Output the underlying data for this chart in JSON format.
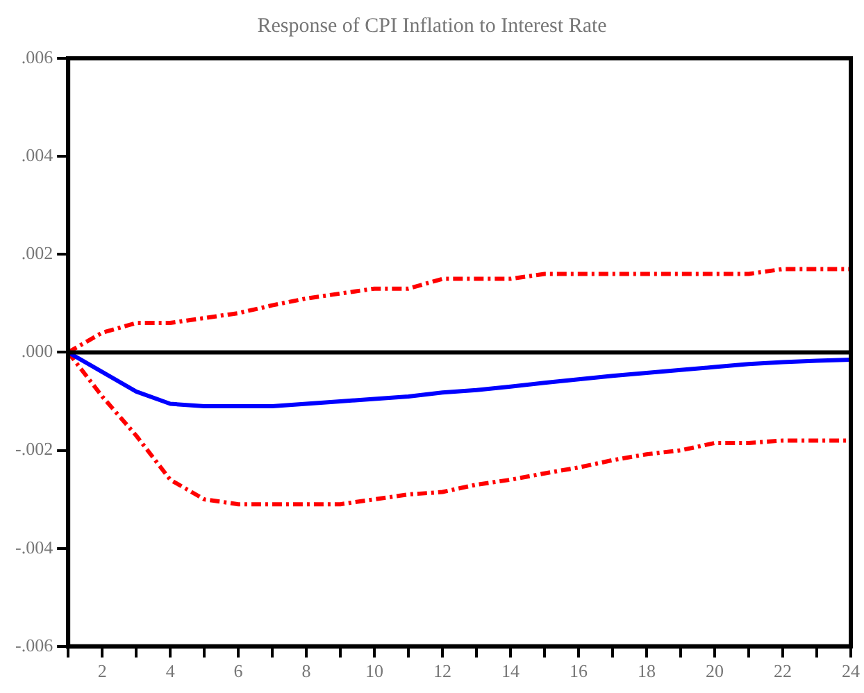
{
  "chart_data": {
    "type": "line",
    "title": "Response of CPI Inflation to Interest Rate",
    "x": [
      1,
      2,
      3,
      4,
      5,
      6,
      7,
      8,
      9,
      10,
      11,
      12,
      13,
      14,
      15,
      16,
      17,
      18,
      19,
      20,
      21,
      22,
      23,
      24
    ],
    "series": [
      {
        "color": "#0000ff",
        "line_style": "solid",
        "values": [
          0,
          -0.0004,
          -0.0008,
          -0.00105,
          -0.0011,
          -0.0011,
          -0.0011,
          -0.00105,
          -0.001,
          -0.00095,
          -0.0009,
          -0.00082,
          -0.00077,
          -0.0007,
          -0.00062,
          -0.00055,
          -0.00048,
          -0.00042,
          -0.00036,
          -0.0003,
          -0.00024,
          -0.0002,
          -0.00017,
          -0.00015
        ]
      },
      {
        "color": "#ff0000",
        "line_style": "dashed",
        "values": [
          0,
          0.0004,
          0.0006,
          0.0006,
          0.0007,
          0.0008,
          0.00096,
          0.0011,
          0.0012,
          0.0013,
          0.0013,
          0.0015,
          0.0015,
          0.0015,
          0.0016,
          0.0016,
          0.0016,
          0.0016,
          0.0016,
          0.0016,
          0.0016,
          0.0017,
          0.0017,
          0.0017
        ]
      },
      {
        "color": "#ff0000",
        "line_style": "dashed",
        "values": [
          0,
          -0.0009,
          -0.0017,
          -0.0026,
          -0.003,
          -0.0031,
          -0.0031,
          -0.0031,
          -0.0031,
          -0.003,
          -0.0029,
          -0.00285,
          -0.0027,
          -0.0026,
          -0.00247,
          -0.00235,
          -0.0022,
          -0.00208,
          -0.002,
          -0.00185,
          -0.00185,
          -0.0018,
          -0.0018,
          -0.0018
        ]
      }
    ],
    "xlim": [
      1,
      24
    ],
    "xticks": [
      {
        "value": 1,
        "label": null
      },
      2,
      {
        "value": 3,
        "label": null
      },
      4,
      {
        "value": 5,
        "label": null
      },
      6,
      {
        "value": 7,
        "label": null
      },
      8,
      {
        "value": 9,
        "label": null
      },
      10,
      {
        "value": 11,
        "label": null
      },
      12,
      {
        "value": 13,
        "label": null
      },
      14,
      {
        "value": 15,
        "label": null
      },
      16,
      {
        "value": 17,
        "label": null
      },
      18,
      {
        "value": 19,
        "label": null
      },
      20,
      {
        "value": 21,
        "label": null
      },
      22,
      {
        "value": 23,
        "label": null
      },
      24
    ],
    "ylim": [
      -0.006,
      0.006
    ],
    "yticks": [
      {
        "value": -0.006,
        "label": "-.006"
      },
      {
        "value": -0.004,
        "label": "-.004"
      },
      {
        "value": -0.002,
        "label": "-.002"
      },
      {
        "value": 0,
        "label": ".000"
      },
      {
        "value": 0.002,
        "label": ".002"
      },
      {
        "value": 0.004,
        "label": ".004"
      },
      {
        "value": 0.006,
        "label": ".006"
      }
    ],
    "ref_lines": [
      {
        "axis": "y",
        "value": 0,
        "color": "#000000"
      }
    ],
    "grid": false,
    "legend": false,
    "marker": "none"
  }
}
